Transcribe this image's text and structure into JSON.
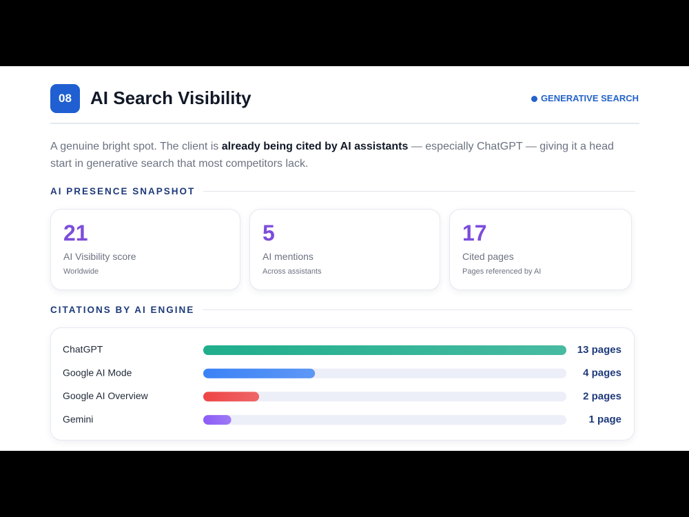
{
  "header": {
    "number": "08",
    "title": "AI Search Visibility",
    "tag": "GENERATIVE SEARCH"
  },
  "intro": {
    "before": "A genuine bright spot. The client is ",
    "bold": "already being cited by AI assistants",
    "after": " — especially ChatGPT — giving it a head start in generative search that most competitors lack."
  },
  "snapshot": {
    "heading": "AI PRESENCE SNAPSHOT",
    "cards": [
      {
        "value": 21,
        "label": "AI Visibility score",
        "note": "Worldwide"
      },
      {
        "value": 5,
        "label": "AI mentions",
        "note": "Across assistants"
      },
      {
        "value": 17,
        "label": "Cited pages",
        "note": "Pages referenced by AI"
      }
    ]
  },
  "chart_data": {
    "type": "bar",
    "orientation": "horizontal",
    "title": "CITATIONS BY AI ENGINE",
    "categories": [
      "ChatGPT",
      "Google AI Mode",
      "Google AI Overview",
      "Gemini"
    ],
    "values": [
      13,
      4,
      2,
      1
    ],
    "value_labels": [
      "13 pages",
      "4 pages",
      "2 pages",
      "1 page"
    ],
    "colors": [
      "#1fae8c",
      "#3b82f6",
      "#ef4444",
      "#8b5cf6"
    ]
  }
}
